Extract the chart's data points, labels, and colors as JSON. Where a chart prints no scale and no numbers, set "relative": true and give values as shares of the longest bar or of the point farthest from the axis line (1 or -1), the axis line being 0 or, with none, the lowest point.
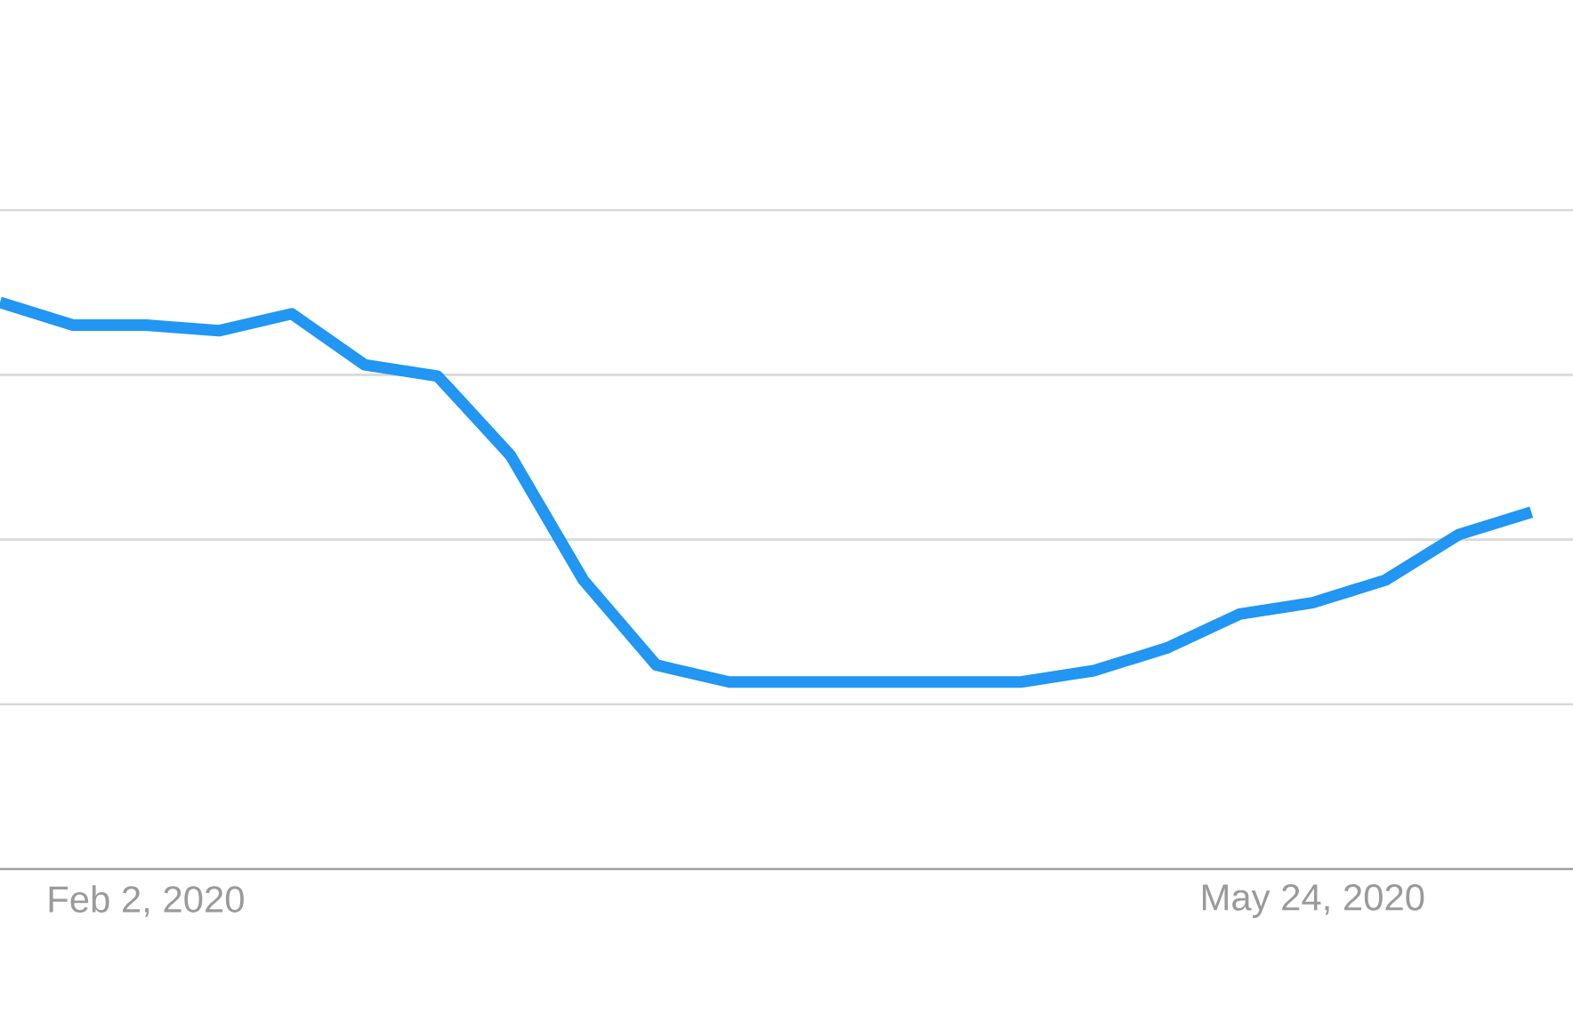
{
  "chart_data": {
    "type": "line",
    "relative": true,
    "x": [
      "2020-01-19",
      "2020-01-26",
      "2020-02-02",
      "2020-02-09",
      "2020-02-16",
      "2020-02-23",
      "2020-03-01",
      "2020-03-08",
      "2020-03-15",
      "2020-03-22",
      "2020-03-29",
      "2020-04-05",
      "2020-04-12",
      "2020-04-19",
      "2020-04-26",
      "2020-05-03",
      "2020-05-10",
      "2020-05-17",
      "2020-05-24",
      "2020-05-31",
      "2020-06-07",
      "2020-06-14"
    ],
    "values": [
      1.0,
      0.96,
      0.96,
      0.95,
      0.98,
      0.89,
      0.87,
      0.73,
      0.51,
      0.36,
      0.33,
      0.33,
      0.33,
      0.33,
      0.33,
      0.35,
      0.39,
      0.45,
      0.47,
      0.51,
      0.59,
      0.63
    ],
    "color": "#2196f3",
    "line_style": "solid",
    "xlim": [
      "2020-01-19",
      "2020-06-18"
    ],
    "xticks": [
      {
        "value": "2020-02-02",
        "label": "Feb 2, 2020"
      },
      {
        "value": "2020-05-24",
        "label": "May 24, 2020"
      }
    ],
    "tick_labels": "x",
    "grid": "y"
  }
}
